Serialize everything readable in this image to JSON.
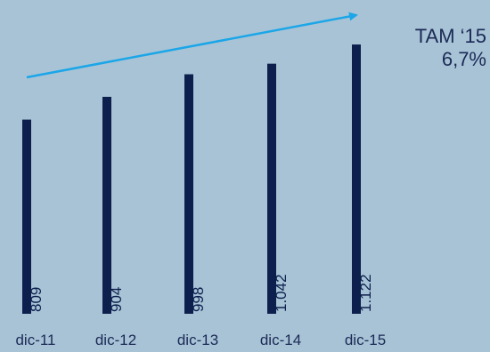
{
  "chart_data": {
    "type": "bar",
    "categories": [
      "dic-11",
      "dic-12",
      "dic-13",
      "dic-14",
      "dic-15"
    ],
    "values": [
      809,
      904,
      998,
      1042,
      1122
    ],
    "value_labels": [
      "809",
      "904",
      "998",
      "1.042",
      "1.122"
    ],
    "title": "",
    "xlabel": "",
    "ylabel": "",
    "ylim": [
      0,
      1200
    ],
    "grid": false,
    "annotation": {
      "line1": "TAM ‘15",
      "line2": "6,7%"
    },
    "colors": {
      "background": "#a8c3d6",
      "bar": "#0d1f4d",
      "arrow": "#1aa6e8",
      "text": "#1b2a55"
    }
  }
}
